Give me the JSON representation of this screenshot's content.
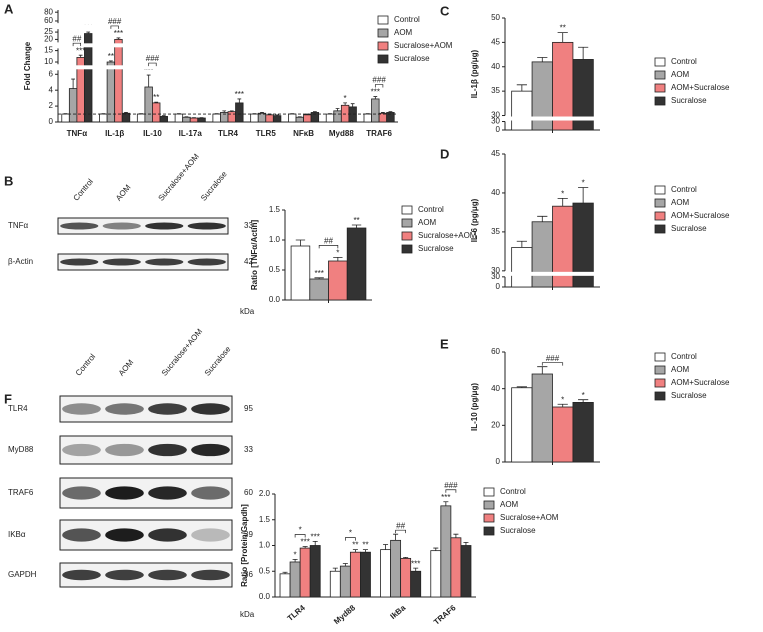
{
  "chart_data": [
    {
      "type": "bar",
      "panel": "A",
      "y_label": "Fold Change",
      "categories": [
        "TNFα",
        "IL-1β",
        "IL-10",
        "IL-17a",
        "TLR4",
        "TLR5",
        "NFκB",
        "Myd88",
        "TRAF6"
      ],
      "ysegments": [
        {
          "ylim": [
            0,
            6.5
          ],
          "yticks": [
            0,
            2,
            4,
            6
          ]
        },
        {
          "ylim": [
            9,
            16
          ],
          "yticks": [
            10,
            15
          ]
        },
        {
          "ylim": [
            18,
            27
          ],
          "yticks": [
            20,
            25
          ]
        },
        {
          "ylim": [
            55,
            85
          ],
          "yticks": [
            60,
            80
          ]
        }
      ],
      "reference_line": 1,
      "series": [
        {
          "name": "Control",
          "color": "#ffffff",
          "values": [
            1,
            1,
            1,
            1,
            1,
            1,
            1,
            1,
            1
          ],
          "errors": [
            0.05,
            0.05,
            0.05,
            0.05,
            0.05,
            0.05,
            0.05,
            0.05,
            0.05
          ]
        },
        {
          "name": "AOM",
          "color": "#a6a6a6",
          "values": [
            4.2,
            10,
            4.4,
            0.6,
            1.2,
            1.1,
            0.6,
            1.4,
            2.9
          ],
          "errors": [
            1.2,
            0.5,
            1.5,
            0.05,
            0.2,
            0.1,
            0.05,
            0.3,
            0.3
          ],
          "annotations": [
            null,
            "**",
            "***",
            null,
            null,
            null,
            null,
            null,
            "***"
          ]
        },
        {
          "name": "Sucralose+AOM",
          "color": "#f08080",
          "values": [
            12,
            20,
            2.4,
            0.5,
            1.3,
            0.9,
            0.9,
            2.1,
            1.1
          ],
          "errors": [
            1,
            1,
            0.1,
            0.05,
            0.1,
            0.1,
            0.1,
            0.3,
            0.1
          ],
          "annotations": [
            "***",
            "***",
            "**",
            null,
            null,
            null,
            null,
            "*",
            null
          ]
        },
        {
          "name": "Sucralose",
          "color": "#333333",
          "values": [
            24,
            1.1,
            0.7,
            0.5,
            2.4,
            0.8,
            1.2,
            1.9,
            1.2
          ],
          "errors": [
            1,
            0.1,
            0.1,
            0.05,
            0.5,
            0.1,
            0.1,
            0.4,
            0.1
          ],
          "annotations": [
            "***",
            null,
            null,
            null,
            "***",
            null,
            null,
            null,
            null
          ]
        }
      ],
      "brackets": [
        "##",
        "###",
        "###",
        null,
        null,
        null,
        null,
        null,
        "###"
      ]
    },
    {
      "type": "bar",
      "y_label": "Ratio [TNFα/Actin]",
      "categories": [
        null
      ],
      "ylim": [
        0,
        1.5
      ],
      "yticks": [
        {
          "value": 0,
          "label": "0.0"
        },
        {
          "value": 0.5,
          "label": "0.5"
        },
        {
          "value": 1,
          "label": "1.0"
        },
        {
          "value": 1.5,
          "label": "1.5"
        }
      ],
      "series": [
        {
          "name": "Control",
          "color": "#ffffff",
          "values": [
            0.9
          ],
          "errors": [
            0.1
          ]
        },
        {
          "name": "AOM",
          "color": "#a6a6a6",
          "values": [
            0.35
          ],
          "errors": [
            0.02
          ],
          "annotations": [
            "***"
          ]
        },
        {
          "name": "Sucralose+AOM",
          "color": "#f08080",
          "values": [
            0.65
          ],
          "errors": [
            0.06
          ],
          "annotations": [
            "*"
          ]
        },
        {
          "name": "Sucralose",
          "color": "#333333",
          "values": [
            1.2
          ],
          "errors": [
            0.05
          ],
          "annotations": [
            "**"
          ]
        }
      ],
      "brackets": [
        "##"
      ]
    },
    {
      "type": "bar",
      "panel": "C",
      "y_label": "IL-1β (pg/μg)",
      "categories": [
        null
      ],
      "ysegments": [
        {
          "ylim": [
            0,
            30
          ],
          "yticks": [
            0,
            30
          ]
        },
        {
          "ylim": [
            30,
            50
          ],
          "yticks": [
            30,
            35,
            40,
            45,
            50
          ]
        }
      ],
      "series": [
        {
          "name": "Control",
          "color": "#ffffff",
          "values": [
            35
          ],
          "errors": [
            1.3
          ]
        },
        {
          "name": "AOM",
          "color": "#a6a6a6",
          "values": [
            41
          ],
          "errors": [
            0.9
          ]
        },
        {
          "name": "AOM+Sucralose",
          "color": "#f08080",
          "values": [
            45
          ],
          "errors": [
            2
          ],
          "annotations": [
            "**"
          ]
        },
        {
          "name": "Sucralose",
          "color": "#333333",
          "values": [
            41.5
          ],
          "errors": [
            2.5
          ]
        }
      ]
    },
    {
      "type": "bar",
      "panel": "D",
      "y_label": "IL-6 (pg/μg)",
      "categories": [
        null
      ],
      "ysegments": [
        {
          "ylim": [
            0,
            30
          ],
          "yticks": [
            0,
            30
          ]
        },
        {
          "ylim": [
            30,
            45
          ],
          "yticks": [
            30,
            35,
            40,
            45
          ]
        }
      ],
      "series": [
        {
          "name": "Control",
          "color": "#ffffff",
          "values": [
            33
          ],
          "errors": [
            0.8
          ]
        },
        {
          "name": "AOM",
          "color": "#a6a6a6",
          "values": [
            36.3
          ],
          "errors": [
            0.7
          ]
        },
        {
          "name": "AOM+Sucralose",
          "color": "#f08080",
          "values": [
            38.3
          ],
          "errors": [
            1
          ],
          "annotations": [
            "*"
          ]
        },
        {
          "name": "Sucralose",
          "color": "#333333",
          "values": [
            38.7
          ],
          "errors": [
            2
          ],
          "annotations": [
            "*"
          ]
        }
      ]
    },
    {
      "type": "bar",
      "panel": "E",
      "y_label": "IL-10 (pg/μg)",
      "categories": [
        null
      ],
      "ylim": [
        0,
        60
      ],
      "yticks": [
        0,
        20,
        40,
        60
      ],
      "series": [
        {
          "name": "Control",
          "color": "#ffffff",
          "values": [
            40.5
          ],
          "errors": [
            0.5
          ]
        },
        {
          "name": "AOM",
          "color": "#a6a6a6",
          "values": [
            48
          ],
          "errors": [
            4
          ]
        },
        {
          "name": "AOM+Sucralose",
          "color": "#f08080",
          "values": [
            30
          ],
          "errors": [
            1.5
          ],
          "annotations": [
            "*"
          ]
        },
        {
          "name": "Sucralose",
          "color": "#333333",
          "values": [
            32.5
          ],
          "errors": [
            1.5
          ],
          "annotations": [
            "*"
          ]
        }
      ],
      "brackets": [
        "###"
      ]
    },
    {
      "type": "bar",
      "y_label": "Ratio [Protein/Gapdh]",
      "categories": [
        "TLR4",
        "Myd88",
        "IkBa",
        "TRAF6"
      ],
      "ylim": [
        0,
        2
      ],
      "yticks": [
        {
          "value": 0,
          "label": "0.0"
        },
        {
          "value": 0.5,
          "label": "0.5"
        },
        {
          "value": 1,
          "label": "1.0"
        },
        {
          "value": 1.5,
          "label": "1.5"
        },
        {
          "value": 2,
          "label": "2.0"
        }
      ],
      "series": [
        {
          "name": "Control",
          "color": "#ffffff",
          "values": [
            0.45,
            0.5,
            0.92,
            0.9
          ],
          "errors": [
            0.03,
            0.06,
            0.1,
            0.05
          ]
        },
        {
          "name": "AOM",
          "color": "#a6a6a6",
          "values": [
            0.68,
            0.6,
            1.1,
            1.77
          ],
          "errors": [
            0.05,
            0.05,
            0.12,
            0.08
          ],
          "annotations": [
            "*",
            null,
            null,
            "***"
          ]
        },
        {
          "name": "Sucralose+AOM",
          "color": "#f08080",
          "values": [
            0.95,
            0.87,
            0.75,
            1.15
          ],
          "errors": [
            0.03,
            0.05,
            0.02,
            0.07
          ],
          "annotations": [
            "***",
            "**",
            null,
            null
          ]
        },
        {
          "name": "Sucralose",
          "color": "#333333",
          "values": [
            1,
            0.87,
            0.5,
            1
          ],
          "errors": [
            0.08,
            0.05,
            0.06,
            0.06
          ],
          "annotations": [
            "***",
            "**",
            "***",
            null
          ]
        }
      ],
      "brackets": [
        "*",
        "*",
        "##",
        "###"
      ]
    }
  ],
  "blots": [
    {
      "panel": "B",
      "lanes": [
        "Control",
        "AOM",
        "Sucralose+AOM",
        "Sucralose"
      ],
      "unit": "kDa",
      "rows": [
        {
          "label": "TNFα",
          "kda": 33
        },
        {
          "label": "β-Actin",
          "kda": 42
        }
      ]
    },
    {
      "panel": "F",
      "lanes": [
        "Control",
        "AOM",
        "Sucralose+AOM",
        "Sucralose"
      ],
      "unit": "kDa",
      "rows": [
        {
          "label": "TLR4",
          "kda": 95
        },
        {
          "label": "MyD88",
          "kda": 33
        },
        {
          "label": "TRAF6",
          "kda": 60
        },
        {
          "label": "IKBα",
          "kda": 39
        },
        {
          "label": "GAPDH",
          "kda": 36
        }
      ]
    }
  ]
}
